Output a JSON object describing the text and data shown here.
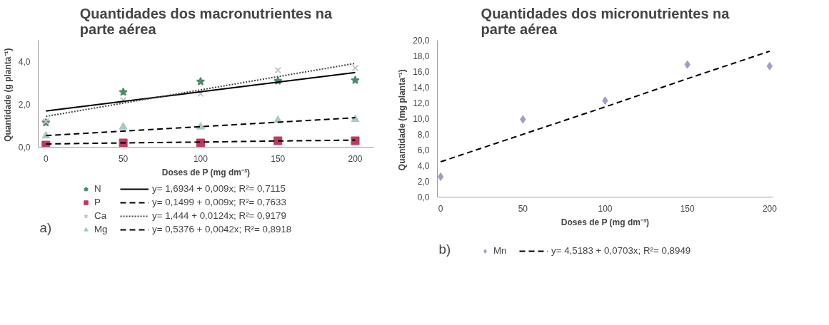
{
  "chart_data": [
    {
      "type": "scatter",
      "title": "Quantidades dos macronutrientes na\nparte aérea",
      "xlabel": "Doses de P (mg dm⁻³)",
      "ylabel": "Quantidade  (g planta⁻¹)",
      "x": [
        0,
        50,
        100,
        150,
        200
      ],
      "xlim": [
        -5,
        212
      ],
      "ylim": [
        0,
        5
      ],
      "xticks": [
        0,
        50,
        100,
        150,
        200
      ],
      "yticks": [
        {
          "value": 0,
          "label": "0,0"
        },
        {
          "value": 2,
          "label": "2,0"
        },
        {
          "value": 4,
          "label": "4,0"
        }
      ],
      "grid": false,
      "legend": "bottom",
      "annotations": [
        "a)"
      ],
      "series": [
        {
          "name": "N",
          "color": "#4d8a6a",
          "marker": "star",
          "values": [
            1.15,
            2.58,
            3.07,
            3.1,
            3.13
          ]
        },
        {
          "name": "P",
          "color": "#c0395f",
          "marker": "square",
          "values": [
            0.1,
            0.2,
            0.2,
            0.3,
            0.3
          ]
        },
        {
          "name": "Ca",
          "color": "#c4c4c4",
          "marker": "cross",
          "values": [
            1.2,
            2.2,
            2.5,
            3.6,
            3.7
          ]
        },
        {
          "name": "Mg",
          "color": "#a9c9c1",
          "marker": "triangle",
          "values": [
            0.53,
            0.95,
            0.95,
            1.26,
            1.3
          ]
        },
        {
          "name": "y= 1,6934 + 0,009x; R²= 0,7115",
          "type": "line",
          "color": "#000000",
          "line_style": "solid",
          "values": [
            1.69,
            2.14,
            2.59,
            3.04,
            3.49
          ]
        },
        {
          "name": "y= 0,1499 + 0,009x; R²= 0,7633",
          "type": "line",
          "color": "#000000",
          "line_style": "dashed",
          "values": [
            0.15,
            0.2,
            0.24,
            0.29,
            0.33
          ]
        },
        {
          "name": "y= 1,444 + 0,0124x; R²= 0,9179",
          "type": "line",
          "color": "#444444",
          "line_style": "dotted",
          "values": [
            1.44,
            2.06,
            2.68,
            3.3,
            3.92
          ]
        },
        {
          "name": "y= 0,5376 + 0,0042x; R²= 0,8918",
          "type": "line",
          "color": "#000000",
          "line_style": "dashed",
          "values": [
            0.54,
            0.75,
            0.96,
            1.17,
            1.38
          ]
        }
      ]
    },
    {
      "type": "scatter",
      "title": "Quantidades dos micronutrientes na\nparte aérea",
      "xlabel": "Doses de P (mg dm⁻³)",
      "ylabel": "Quantidade  (mg planta⁻¹)",
      "x": [
        0,
        50,
        100,
        150,
        200
      ],
      "xlim": [
        -2,
        202
      ],
      "ylim": [
        0,
        20
      ],
      "xticks": [
        0,
        50,
        100,
        150,
        200
      ],
      "yticks": [
        {
          "value": 0,
          "label": "0,0"
        },
        {
          "value": 2,
          "label": "2,0"
        },
        {
          "value": 4,
          "label": "4,0"
        },
        {
          "value": 6,
          "label": "6,0"
        },
        {
          "value": 8,
          "label": "8,0"
        },
        {
          "value": 10,
          "label": "10,0"
        },
        {
          "value": 12,
          "label": "12,0"
        },
        {
          "value": 14,
          "label": "14,0"
        },
        {
          "value": 16,
          "label": "16,0"
        },
        {
          "value": 18,
          "label": "18,0"
        },
        {
          "value": 20,
          "label": "20,0"
        }
      ],
      "grid": false,
      "legend": "bottom",
      "annotations": [
        "b)"
      ],
      "series": [
        {
          "name": "Mn",
          "color": "#a99bc4",
          "marker": "diamond",
          "values": [
            2.6,
            9.9,
            12.3,
            16.9,
            16.7
          ]
        },
        {
          "name": "y= 4,5183 + 0,0703x; R²= 0,8949",
          "type": "line",
          "color": "#000000",
          "line_style": "dashed",
          "values": [
            4.5,
            8.0,
            11.5,
            15.1,
            18.6
          ]
        }
      ]
    }
  ]
}
